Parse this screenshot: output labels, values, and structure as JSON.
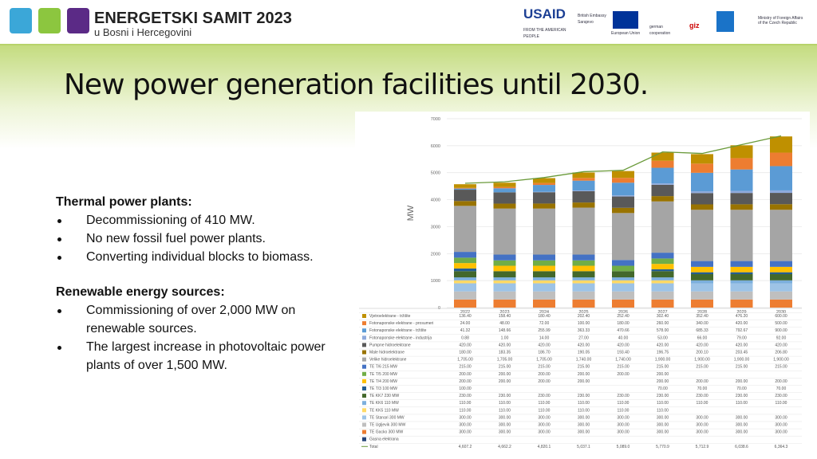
{
  "header": {
    "brand": "ENERGETSKI SAMIT 2023",
    "subtitle": "u Bosni i Hercegovini",
    "partners": [
      "USAID",
      "FROM THE AMERICAN PEOPLE",
      "British Embassy Sarajevo",
      "European Union",
      "german cooperation",
      "giz",
      "Ministry of Foreign Affairs of the Czech Republic"
    ]
  },
  "title": "New power generation facilities until 2030.",
  "text": {
    "sections": [
      {
        "heading": "Thermal power plants:",
        "bullets": [
          "Decommissioning of 410 MW.",
          "No new fossil fuel power plants.",
          "Converting individual blocks to biomass."
        ]
      },
      {
        "heading": "Renewable energy sources:",
        "bullets": [
          "Commissioning of over 2,000 MW on renewable sources.",
          "The largest increase in photovoltaic power plants of over 1,500 MW."
        ]
      }
    ]
  },
  "chart_data": {
    "type": "bar",
    "stacked": true,
    "ylabel": "MW",
    "ylim": [
      0,
      7000
    ],
    "yticks": [
      0,
      1000,
      2000,
      3000,
      4000,
      5000,
      6000,
      7000
    ],
    "grid": true,
    "categories": [
      "2022",
      "2023",
      "2024",
      "2025",
      "2026",
      "2027",
      "2028",
      "2029",
      "2030"
    ],
    "series": [
      {
        "name": "Vjetroelektrane - tržište",
        "color": "#bf9000",
        "values": [
          136.4,
          158.4,
          180.4,
          202.4,
          252.4,
          302.4,
          352.4,
          476.2,
          600
        ],
        "value_labels": [
          "136.40",
          "158.40",
          "180.40",
          "202.40",
          "252.40",
          "302.40",
          "352.40",
          "476.20",
          "600.00"
        ]
      },
      {
        "name": "Fotonaponske elektrane - prosumeri",
        "color": "#ed7d31",
        "values": [
          24,
          48,
          72,
          100,
          180,
          260,
          340,
          420,
          500
        ],
        "value_labels": [
          "24.00",
          "48.00",
          "72.00",
          "100.00",
          "180.00",
          "260.00",
          "340.00",
          "420.00",
          "500.00"
        ]
      },
      {
        "name": "Fotonaponske elektrane - tržište",
        "color": "#5b9bd5",
        "values": [
          41.32,
          148.66,
          255.99,
          363.33,
          470.66,
          578,
          685.33,
          792.67,
          900
        ],
        "value_labels": [
          "41.32",
          "148.66",
          "255.99",
          "363.33",
          "470.66",
          "578.00",
          "685.33",
          "792.67",
          "900.00"
        ]
      },
      {
        "name": "Fotonaponske elektrane - industrija",
        "color": "#8faadc",
        "values": [
          0.88,
          1,
          14,
          27,
          40,
          53,
          66,
          79,
          92
        ],
        "value_labels": [
          "0.88",
          "1.00",
          "14.00",
          "27.00",
          "40.00",
          "53.00",
          "66.00",
          "79.00",
          "92.00"
        ]
      },
      {
        "name": "Pumpne hidroelektrane",
        "color": "#595959",
        "values": [
          420,
          420,
          420,
          420,
          420,
          420,
          420,
          420,
          420
        ],
        "value_labels": [
          "420.00",
          "420.00",
          "420.00",
          "420.00",
          "420.00",
          "420.00",
          "420.00",
          "420.00",
          "420.00"
        ]
      },
      {
        "name": "Male hidroelektrane",
        "color": "#997300",
        "values": [
          180,
          183.35,
          186.7,
          190.05,
          193.4,
          196.75,
          200.1,
          203.45,
          206.8
        ],
        "value_labels": [
          "180.00",
          "183.35",
          "186.70",
          "190.05",
          "193.40",
          "196.75",
          "200.10",
          "203.45",
          "206.80"
        ]
      },
      {
        "name": "Velike hidroelektrane",
        "color": "#a5a5a5",
        "values": [
          1705,
          1705,
          1705,
          1740,
          1740,
          1900,
          1900,
          1900,
          1900
        ],
        "value_labels": [
          "1,705.00",
          "1,705.00",
          "1,705.00",
          "1,740.00",
          "1,740.00",
          "1,900.00",
          "1,900.00",
          "1,900.00",
          "1,900.00"
        ]
      },
      {
        "name": "TE T/6 215 MW",
        "color": "#4472c4",
        "values": [
          215,
          215,
          215,
          215,
          215,
          215,
          215,
          215,
          215
        ],
        "value_labels": [
          "215.00",
          "215.00",
          "215.00",
          "215.00",
          "215.00",
          "215.00",
          "215.00",
          "215.00",
          "215.00"
        ]
      },
      {
        "name": "TE T/5 200 MW",
        "color": "#70ad47",
        "values": [
          200,
          200,
          200,
          200,
          200,
          200,
          null,
          null,
          null
        ],
        "value_labels": [
          "200.00",
          "200.00",
          "200.00",
          "200.00",
          "200.00",
          "200.00",
          null,
          null,
          null
        ]
      },
      {
        "name": "TE T/4 200 MW",
        "color": "#ffc000",
        "values": [
          200,
          200,
          200,
          200,
          null,
          200,
          200,
          200,
          200
        ],
        "value_labels": [
          "200.00",
          "200.00",
          "200.00",
          "200.00",
          null,
          "200.00",
          "200.00",
          "200.00",
          "200.00"
        ]
      },
      {
        "name": "TE T/3 100 MW",
        "color": "#255e91",
        "values": [
          100,
          null,
          null,
          null,
          null,
          70,
          70,
          70,
          70
        ],
        "value_labels": [
          "100.00",
          null,
          null,
          null,
          null,
          "70.00",
          "70.00",
          "70.00",
          "70.00"
        ]
      },
      {
        "name": "TE KK7 230 MW",
        "color": "#43682b",
        "values": [
          230,
          230,
          230,
          230,
          230,
          230,
          230,
          230,
          230
        ],
        "value_labels": [
          "230.00",
          "230.00",
          "230.00",
          "230.00",
          "230.00",
          "230.00",
          "230.00",
          "230.00",
          "230.00"
        ]
      },
      {
        "name": "TE KK6 110 MW",
        "color": "#7cafdd",
        "values": [
          110,
          110,
          110,
          110,
          110,
          110,
          110,
          110,
          110
        ],
        "value_labels": [
          "110.00",
          "110.00",
          "110.00",
          "110.00",
          "110.00",
          "110.00",
          "110.00",
          "110.00",
          "110.00"
        ]
      },
      {
        "name": "TE KK5 110 MW",
        "color": "#ffd966",
        "values": [
          110,
          110,
          110,
          110,
          110,
          110,
          null,
          null,
          null
        ],
        "value_labels": [
          "110.00",
          "110.00",
          "110.00",
          "110.00",
          "110.00",
          "110.00",
          null,
          null,
          null
        ]
      },
      {
        "name": "TE Stanari 300 MW",
        "color": "#9dc3e6",
        "values": [
          300,
          300,
          300,
          300,
          300,
          300,
          300,
          300,
          300
        ],
        "value_labels": [
          "300.00",
          "300.00",
          "300.00",
          "300.00",
          "300.00",
          "300.00",
          "300.00",
          "300.00",
          "300.00"
        ]
      },
      {
        "name": "TE Ugljevik 300 MW",
        "color": "#bfbfbf",
        "values": [
          300,
          300,
          300,
          300,
          300,
          300,
          300,
          300,
          300
        ],
        "value_labels": [
          "300.00",
          "300.00",
          "300.00",
          "300.00",
          "300.00",
          "300.00",
          "300.00",
          "300.00",
          "300.00"
        ]
      },
      {
        "name": "TE Gacko 300 MW",
        "color": "#ed7d31",
        "values": [
          300,
          300,
          300,
          300,
          300,
          300,
          300,
          300,
          300
        ],
        "value_labels": [
          "300.00",
          "300.00",
          "300.00",
          "300.00",
          "300.00",
          "300.00",
          "300.00",
          "300.00",
          "300.00"
        ]
      },
      {
        "name": "Gasna elektrana",
        "color": "#264478",
        "values": [
          null,
          null,
          null,
          null,
          null,
          null,
          null,
          null,
          null
        ]
      },
      {
        "name": "Total",
        "type": "line",
        "color": "#6a9a3a",
        "values": [
          4607.2,
          4662.2,
          4820.1,
          5037.1,
          5089.0,
          5770.9,
          5712.9,
          6038.6,
          6364.3
        ],
        "value_labels": [
          "4,607.2",
          "4,662.2",
          "4,820.1",
          "5,037.1",
          "5,089.0",
          "5,770.9",
          "5,712.9",
          "6,038.6",
          "6,364.3"
        ]
      }
    ]
  }
}
